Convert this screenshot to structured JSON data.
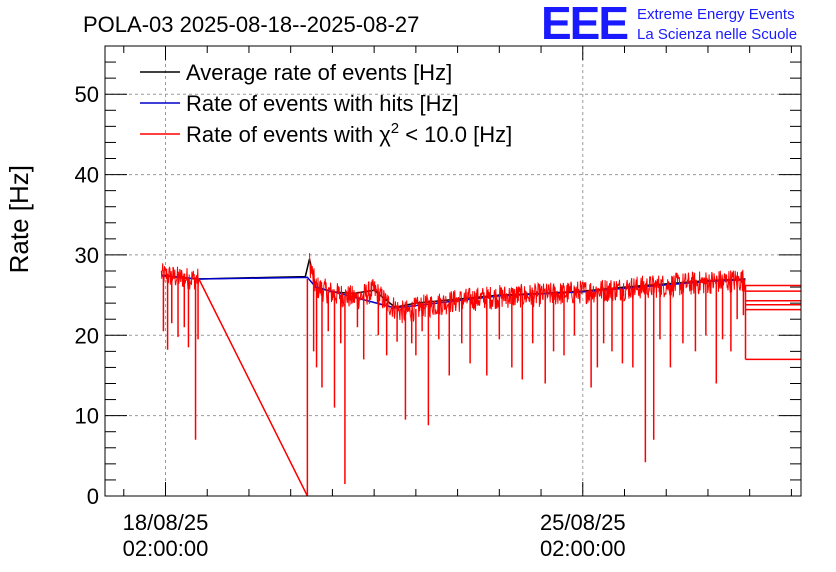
{
  "chart_data": {
    "type": "line",
    "title": "POLA-03 2025-08-18--2025-08-27",
    "logo": {
      "text": "EEE",
      "line1": "Extreme Energy Events",
      "line2": "La Scienza nelle Scuole",
      "color": "#1a1aff"
    },
    "ylabel": "Rate [Hz]",
    "ylim": [
      0,
      56
    ],
    "yticks": [
      0,
      10,
      20,
      30,
      40,
      50
    ],
    "ytick_labels": [
      "0",
      "10",
      "20",
      "30",
      "40",
      "50"
    ],
    "xlim_days": [
      -1.45,
      15.23
    ],
    "xticks": [
      {
        "day": 0,
        "line1": "18/08/25",
        "line2": "02:00:00"
      },
      {
        "day": 10,
        "line1": "25/08/25",
        "line2": "02:00:00"
      }
    ],
    "grid": true,
    "legend": {
      "position": "top-left",
      "entries": [
        {
          "label": "Average rate of events [Hz]",
          "color": "#000000"
        },
        {
          "label": "Rate of events with hits [Hz]",
          "color": "#0000cc"
        },
        {
          "label_prefix": "Rate of events with χ",
          "label_sup": "2",
          "label_suffix": " < 10.0 [Hz]",
          "color": "#ff0000"
        }
      ]
    },
    "series": [
      {
        "name": "Average rate of events [Hz]",
        "color": "#000000",
        "points": [
          [
            -0.1,
            27.5
          ],
          [
            0.2,
            27.3
          ],
          [
            0.5,
            27.1
          ],
          [
            0.8,
            27.0
          ],
          [
            1.5,
            27.1
          ],
          [
            2.5,
            27.2
          ],
          [
            3.35,
            27.3
          ],
          [
            3.45,
            29.5
          ],
          [
            3.6,
            26.0
          ],
          [
            4.0,
            25.4
          ],
          [
            4.5,
            25.2
          ],
          [
            5.0,
            25.6
          ],
          [
            5.5,
            23.5
          ],
          [
            6.0,
            24.0
          ],
          [
            7.0,
            24.5
          ],
          [
            8.0,
            25.0
          ],
          [
            9.0,
            25.2
          ],
          [
            10.0,
            25.5
          ],
          [
            11.0,
            26.0
          ],
          [
            12.0,
            26.4
          ],
          [
            13.0,
            26.8
          ],
          [
            13.9,
            27.0
          ]
        ]
      },
      {
        "name": "Rate of events with hits [Hz]",
        "color": "#0000cc",
        "points": [
          [
            -0.1,
            27.4
          ],
          [
            0.8,
            27.0
          ],
          [
            3.4,
            27.2
          ],
          [
            3.6,
            26.0
          ],
          [
            5.5,
            23.4
          ],
          [
            8.0,
            24.9
          ],
          [
            10.0,
            25.4
          ],
          [
            13.0,
            26.7
          ],
          [
            13.9,
            26.9
          ]
        ]
      },
      {
        "name": "Rate of events with χ² < 10.0 [Hz]",
        "color": "#ff0000",
        "segments": [
          {
            "start": -0.1,
            "end": 0.8,
            "center": [
              [
                -0.1,
                27.6
              ],
              [
                0.3,
                27.2
              ],
              [
                0.8,
                27.0
              ]
            ],
            "amplitude": 1.4
          },
          {
            "start": 3.45,
            "end": 13.9,
            "center": [
              [
                3.45,
                29.0
              ],
              [
                3.6,
                26.0
              ],
              [
                4.0,
                25.2
              ],
              [
                4.6,
                24.6
              ],
              [
                5.0,
                25.6
              ],
              [
                5.3,
                24.0
              ],
              [
                5.7,
                22.8
              ],
              [
                6.2,
                23.6
              ],
              [
                7.0,
                24.3
              ],
              [
                8.0,
                24.8
              ],
              [
                9.0,
                25.0
              ],
              [
                10.0,
                25.4
              ],
              [
                11.0,
                25.8
              ],
              [
                12.0,
                26.2
              ],
              [
                13.0,
                26.6
              ],
              [
                13.9,
                26.9
              ]
            ],
            "amplitude": 1.5
          }
        ],
        "gap_line": [
          [
            0.8,
            27.0
          ],
          [
            3.4,
            0
          ]
        ],
        "spikes": [
          [
            -0.05,
            20.5
          ],
          [
            0.05,
            18.2
          ],
          [
            0.15,
            21.5
          ],
          [
            0.3,
            19.8
          ],
          [
            0.45,
            21.0
          ],
          [
            0.55,
            18.5
          ],
          [
            0.72,
            7.0
          ],
          [
            0.78,
            19.5
          ],
          [
            3.4,
            0.0
          ],
          [
            3.55,
            18.0
          ],
          [
            3.62,
            16.0
          ],
          [
            3.75,
            13.5
          ],
          [
            3.9,
            20.5
          ],
          [
            4.05,
            11.0
          ],
          [
            4.2,
            19.0
          ],
          [
            4.3,
            1.5
          ],
          [
            4.6,
            21.0
          ],
          [
            4.75,
            17.0
          ],
          [
            5.1,
            20.0
          ],
          [
            5.3,
            17.5
          ],
          [
            5.55,
            19.2
          ],
          [
            5.75,
            9.5
          ],
          [
            5.9,
            19.0
          ],
          [
            6.0,
            17.5
          ],
          [
            6.15,
            20.5
          ],
          [
            6.3,
            8.8
          ],
          [
            6.55,
            19.5
          ],
          [
            6.8,
            15.0
          ],
          [
            7.1,
            19.0
          ],
          [
            7.3,
            16.5
          ],
          [
            7.7,
            15.0
          ],
          [
            8.0,
            19.5
          ],
          [
            8.3,
            16.0
          ],
          [
            8.55,
            14.5
          ],
          [
            8.8,
            19.0
          ],
          [
            9.1,
            14.0
          ],
          [
            9.3,
            18.0
          ],
          [
            9.55,
            17.5
          ],
          [
            9.8,
            20.0
          ],
          [
            10.2,
            13.5
          ],
          [
            10.35,
            16.0
          ],
          [
            10.5,
            19.0
          ],
          [
            10.7,
            18.0
          ],
          [
            10.95,
            16.5
          ],
          [
            11.2,
            16.0
          ],
          [
            11.5,
            4.2
          ],
          [
            11.7,
            7.0
          ],
          [
            11.85,
            19.5
          ],
          [
            12.1,
            16.0
          ],
          [
            12.4,
            19.0
          ],
          [
            12.7,
            18.0
          ],
          [
            12.95,
            20.0
          ],
          [
            13.2,
            14.0
          ],
          [
            13.35,
            19.5
          ],
          [
            13.55,
            18.0
          ],
          [
            13.7,
            22.0
          ],
          [
            13.85,
            22.5
          ]
        ],
        "after_lines": [
          [
            13.9,
            17.0
          ],
          [
            13.9,
            23.2
          ],
          [
            13.9,
            23.8
          ],
          [
            13.9,
            24.3
          ],
          [
            13.9,
            25.5
          ],
          [
            13.9,
            26.2
          ]
        ]
      }
    ]
  }
}
